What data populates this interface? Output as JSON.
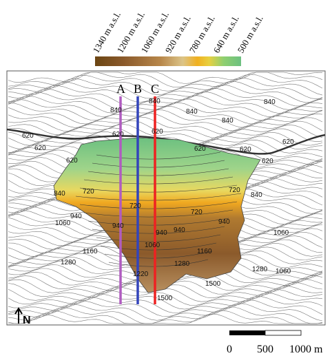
{
  "legend": {
    "labels": [
      "1340 m a.s.l.",
      "1200 m a.s.l.",
      "1060 m a.s.l.",
      "920 m a.s.l.",
      "780 m a.s.l.",
      "640 m a.s.l.",
      "500 m a.s.l."
    ]
  },
  "sections": [
    "A",
    "B",
    "C"
  ],
  "contour_labels": [
    840,
    840,
    840,
    840,
    840,
    620,
    620,
    620,
    620,
    620,
    620,
    620,
    620,
    620,
    840,
    720,
    720,
    840,
    720,
    720,
    940,
    940,
    940,
    940,
    940,
    1060,
    1060,
    1060,
    1160,
    1160,
    1280,
    1280,
    1280,
    1500,
    1060,
    1220,
    1500
  ],
  "north": "N",
  "scale_bar": [
    "0",
    "500",
    "1000 m"
  ]
}
